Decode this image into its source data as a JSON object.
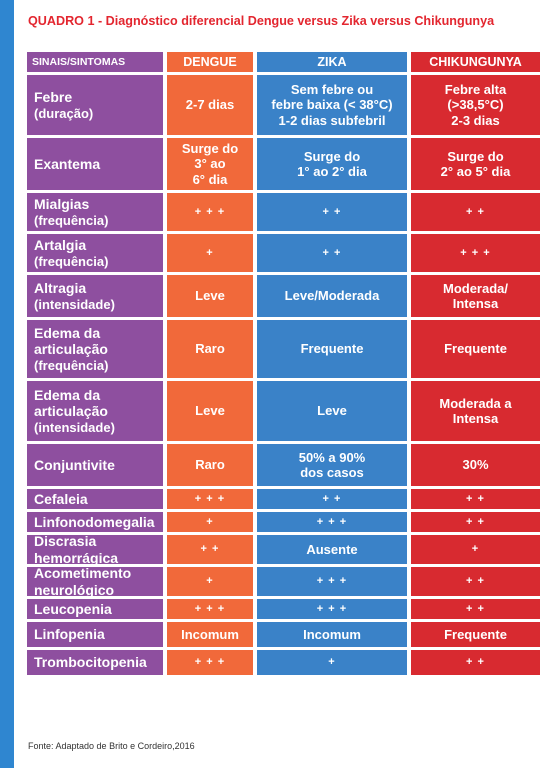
{
  "title": "QUADRO 1 - Diagnóstico diferencial Dengue versus Zika versus Chikungunya",
  "colors": {
    "sign": "#8e4f9f",
    "dengue": "#f1693a",
    "zika": "#3a82c8",
    "chik": "#d82a30",
    "title": "#e3262f",
    "edge": "#2f86d0"
  },
  "headers": {
    "sign": "SINAIS/SINTOMAS",
    "dengue": "DENGUE",
    "zika": "ZIKA",
    "chik": "CHIKUNGUNYA"
  },
  "rows": [
    {
      "sign": "Febre",
      "sign_sub": "(duração)",
      "dengue": "2-7 dias",
      "zika": "Sem febre ou\nfebre baixa (< 38°C)\n1-2 dias subfebril",
      "chik": "Febre alta\n(>38,5°C)\n2-3 dias"
    },
    {
      "sign": "Exantema",
      "sign_sub": "",
      "dengue": "Surge do\n3° ao\n6° dia",
      "zika": "Surge do\n1° ao 2° dia",
      "chik": "Surge do\n2° ao 5° dia"
    },
    {
      "sign": "Mialgias",
      "sign_sub": "(frequência)",
      "dengue": "+ + +",
      "zika": "+ +",
      "chik": "+ +"
    },
    {
      "sign": "Artalgia",
      "sign_sub": "(frequência)",
      "dengue": "+",
      "zika": "+ +",
      "chik": "+ + +"
    },
    {
      "sign": "Altragia",
      "sign_sub": "(intensidade)",
      "dengue": "Leve",
      "zika": "Leve/Moderada",
      "chik": "Moderada/\nIntensa"
    },
    {
      "sign": "Edema da\narticulação",
      "sign_sub": "(frequência)",
      "dengue": "Raro",
      "zika": "Frequente",
      "chik": "Frequente"
    },
    {
      "sign": "Edema da\narticulação",
      "sign_sub": "(intensidade)",
      "dengue": "Leve",
      "zika": "Leve",
      "chik": "Moderada a\nIntensa"
    },
    {
      "sign": "Conjuntivite",
      "sign_sub": "",
      "dengue": "Raro",
      "zika": "50% a 90%\ndos casos",
      "chik": "30%"
    },
    {
      "sign": "Cefaleia",
      "sign_sub": "",
      "dengue": "+ + +",
      "zika": "+ +",
      "chik": "+ +"
    },
    {
      "sign": "Linfonodomegalia",
      "sign_sub": "",
      "dengue": "+",
      "zika": "+ + +",
      "chik": "+ +"
    },
    {
      "sign": "Discrasia\nhemorrágica",
      "sign_sub": "",
      "dengue": "+ +",
      "zika": "Ausente",
      "chik": "+"
    },
    {
      "sign": "Acometimento\nneurológico",
      "sign_sub": "",
      "dengue": "+",
      "zika": "+ + +",
      "chik": "+ +"
    },
    {
      "sign": "Leucopenia",
      "sign_sub": "",
      "dengue": "+ + +",
      "zika": "+ + +",
      "chik": "+ +"
    },
    {
      "sign": "Linfopenia",
      "sign_sub": "",
      "dengue": "Incomum",
      "zika": "Incomum",
      "chik": "Frequente"
    },
    {
      "sign": "Trombocitopenia",
      "sign_sub": "",
      "dengue": "+ + +",
      "zika": "+",
      "chik": "+ +"
    }
  ],
  "footer": "Fonte: Adaptado de Brito e Cordeiro,2016"
}
